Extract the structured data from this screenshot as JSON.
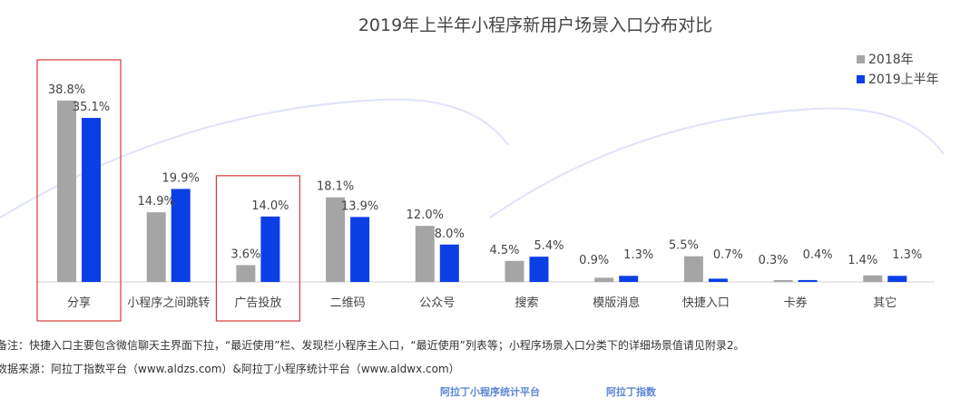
{
  "chart_data": {
    "type": "bar",
    "title": "2019年上半年小程序新用户场景入口分布对比",
    "categories": [
      "分享",
      "小程序之间跳转",
      "广告投放",
      "二维码",
      "公众号",
      "搜索",
      "模版消息",
      "快捷入口",
      "卡券",
      "其它"
    ],
    "series": [
      {
        "name": "2018年",
        "color": "#a5a5a5",
        "values": [
          38.8,
          14.9,
          3.6,
          18.1,
          12.0,
          4.5,
          0.9,
          5.5,
          0.3,
          1.4
        ],
        "labels": [
          "38.8%",
          "14.9%",
          "3.6%",
          "18.1%",
          "12.0%",
          "4.5%",
          "0.9%",
          "5.5%",
          "0.3%",
          "1.4%"
        ]
      },
      {
        "name": "2019上半年",
        "color": "#0b3fe6",
        "values": [
          35.1,
          19.9,
          14.0,
          13.9,
          8.0,
          5.4,
          1.3,
          0.7,
          0.4,
          1.3
        ],
        "labels": [
          "35.1%",
          "19.9%",
          "14.0%",
          "13.9%",
          "8.0%",
          "5.4%",
          "1.3%",
          "0.7%",
          "0.4%",
          "1.3%"
        ]
      }
    ],
    "highlighted": [
      "分享",
      "广告投放"
    ],
    "legend": "top-right",
    "ylim": [
      0,
      40
    ]
  },
  "notes": {
    "remark": "备注：快捷入口主要包含微信聊天主界面下拉，“最近使用”栏、发现栏小程序主入口，“最近使用”列表等；小程序场景入口分类下的详细场景值请见附录2。",
    "source": "数据来源：阿拉丁指数平台（www.aldzs.com）&阿拉丁小程序统计平台（www.aldwx.com）"
  },
  "logos": [
    "阿拉丁小程序统计平台",
    "阿拉丁指数"
  ],
  "watermark": "阿拉丁"
}
